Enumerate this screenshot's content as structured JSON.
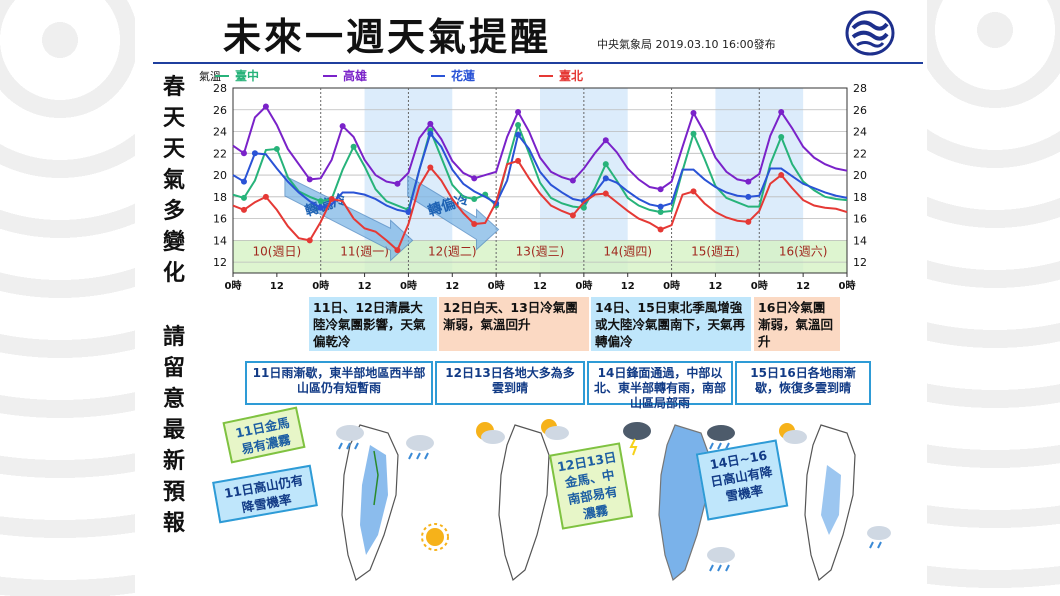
{
  "header": {
    "title": "未來一週天氣提醒",
    "subtitle": "中央氣象局 2019.03.10 16:00發布"
  },
  "side_text": {
    "line1": [
      "春",
      "天",
      "天",
      "氣",
      "多",
      "變",
      "化"
    ],
    "line2": [
      "請",
      "留",
      "意",
      "最",
      "新",
      "預",
      "報"
    ]
  },
  "chart_data": {
    "type": "line",
    "ylabel": "氣溫",
    "ylim": [
      11,
      28
    ],
    "yticks": [
      12,
      14,
      16,
      18,
      20,
      22,
      24,
      26,
      28
    ],
    "x_hours": [
      0,
      3,
      6,
      9,
      12,
      15,
      18,
      21,
      24,
      27,
      30,
      33,
      36,
      39,
      42,
      45,
      48,
      51,
      54,
      57,
      60,
      63,
      66,
      69,
      72,
      75,
      78,
      81,
      84,
      87,
      90,
      93,
      96,
      99,
      102,
      105,
      108,
      111,
      114,
      117,
      120,
      123,
      126,
      129,
      132,
      135,
      138,
      141,
      144,
      147,
      150,
      153,
      156,
      159,
      162,
      165,
      168
    ],
    "x_tick_labels": [
      "0時",
      "12",
      "0時",
      "12",
      "0時",
      "12",
      "0時",
      "12",
      "0時",
      "12",
      "0時",
      "12",
      "0時",
      "12",
      "0時"
    ],
    "day_labels": [
      "10(週日)",
      "11(週一)",
      "12(週二)",
      "13(週三)",
      "14(週四)",
      "15(週五)",
      "16(週六)"
    ],
    "shaded_days": [
      1,
      3,
      5
    ],
    "annotations": [
      "轉偏冷",
      "轉偏冷"
    ],
    "series": [
      {
        "name": "臺中",
        "color": "#27b37a",
        "values": [
          18.2,
          17.9,
          19.5,
          22.3,
          22.4,
          19.8,
          18.5,
          18.0,
          17.6,
          17.8,
          20.5,
          22.6,
          20.8,
          18.7,
          17.6,
          17.2,
          16.8,
          20.5,
          24.1,
          21.6,
          19.1,
          18.0,
          17.8,
          18.2,
          17.2,
          21.0,
          24.6,
          22.0,
          19.3,
          17.9,
          17.4,
          17.1,
          17.0,
          18.8,
          21.0,
          19.5,
          17.9,
          17.2,
          16.8,
          16.6,
          16.7,
          20.4,
          23.8,
          21.5,
          19.0,
          17.9,
          17.5,
          17.1,
          17.1,
          21.0,
          23.5,
          21.0,
          19.4,
          18.6,
          18.0,
          17.8,
          17.7
        ]
      },
      {
        "name": "高雄",
        "color": "#7a22c9",
        "values": [
          22.7,
          22.0,
          25.3,
          26.3,
          24.6,
          22.4,
          21.0,
          19.6,
          19.7,
          21.4,
          24.5,
          23.5,
          21.4,
          20.0,
          19.4,
          19.2,
          20.2,
          23.4,
          24.7,
          23.3,
          21.3,
          20.2,
          19.7,
          20.0,
          20.3,
          23.5,
          25.8,
          24.0,
          21.6,
          20.3,
          19.8,
          19.5,
          20.6,
          22.0,
          23.2,
          22.1,
          20.6,
          19.6,
          18.9,
          18.7,
          19.4,
          22.6,
          25.7,
          23.9,
          21.6,
          20.3,
          19.6,
          19.4,
          20.1,
          23.6,
          25.8,
          24.3,
          22.6,
          21.6,
          21.0,
          20.6,
          20.4
        ]
      },
      {
        "name": "花蓮",
        "color": "#2a53d6",
        "values": [
          20.0,
          19.4,
          22.0,
          21.9,
          20.6,
          19.4,
          18.4,
          17.6,
          17.0,
          17.3,
          18.4,
          18.4,
          18.2,
          17.8,
          17.2,
          16.8,
          16.6,
          20.5,
          23.8,
          22.6,
          20.5,
          19.2,
          18.5,
          18.0,
          17.4,
          19.5,
          23.7,
          22.4,
          20.3,
          19.1,
          18.4,
          17.8,
          17.6,
          18.4,
          19.7,
          19.3,
          18.5,
          17.8,
          17.3,
          17.1,
          17.4,
          20.5,
          20.5,
          19.6,
          18.9,
          18.4,
          18.1,
          18.0,
          18.1,
          20.6,
          20.6,
          19.9,
          19.2,
          18.8,
          18.4,
          18.1,
          17.9
        ]
      },
      {
        "name": "臺北",
        "color": "#e53935",
        "values": [
          17.2,
          16.8,
          17.5,
          18.0,
          16.8,
          15.3,
          14.2,
          14.0,
          15.7,
          17.8,
          17.6,
          16.0,
          15.1,
          14.8,
          14.0,
          13.1,
          15.5,
          19.0,
          20.7,
          19.5,
          17.8,
          16.5,
          15.5,
          15.6,
          17.5,
          21.0,
          21.3,
          19.7,
          18.3,
          17.2,
          16.7,
          16.3,
          17.5,
          18.2,
          18.3,
          17.5,
          16.7,
          16.0,
          15.6,
          15.0,
          15.4,
          18.2,
          18.5,
          17.4,
          16.6,
          16.1,
          15.8,
          15.7,
          16.7,
          19.2,
          20.0,
          18.8,
          17.7,
          17.2,
          17.0,
          16.9,
          16.6
        ]
      }
    ]
  },
  "forecast_boxes": [
    {
      "text": "11日、12日清晨大陸冷氣團影響，天氣偏乾冷",
      "color": "blue"
    },
    {
      "text": "12日白天、13日冷氣團漸弱，氣溫回升",
      "color": "orange"
    },
    {
      "text": "14日、15日東北季風增強或大陸冷氣團南下，天氣再轉偏冷",
      "color": "blue"
    },
    {
      "text": "16日冷氣團漸弱，氣溫回升",
      "color": "orange"
    }
  ],
  "weather_notes": [
    "11日雨漸歇，東半部地區西半部山區仍有短暫雨",
    "12日13日各地大多為多雲到晴",
    "14日鋒面通過，中部以北、東半部轉有雨，南部山區局部雨",
    "15日16日各地雨漸歇，恢復多雲到晴"
  ],
  "map_notes": {
    "n1": "11日金馬易有濃霧",
    "n2": "11日高山仍有降雪機率",
    "n3": "12日13日金馬、中南部易有濃霧",
    "n4": "14日~16日高山有降雪機率"
  }
}
